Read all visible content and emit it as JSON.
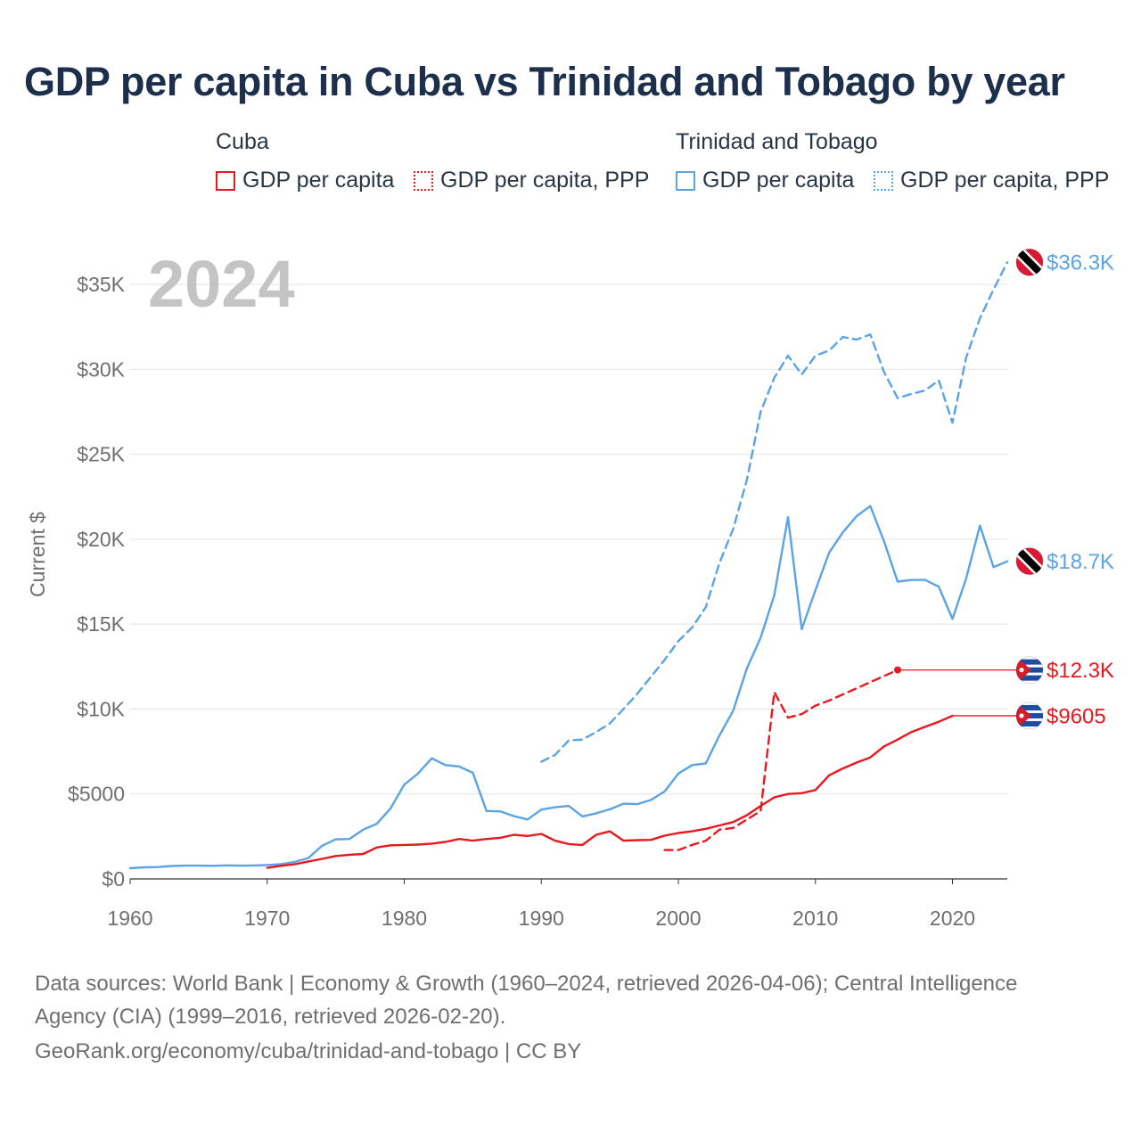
{
  "title": "GDP per capita in Cuba vs Trinidad and Tobago by year",
  "legend": {
    "groups": [
      {
        "title": "Cuba",
        "items": [
          {
            "label": "GDP per capita",
            "color": "#e8181f",
            "style": "solid"
          },
          {
            "label": "GDP per capita, PPP",
            "color": "#e8181f",
            "style": "dotted"
          }
        ]
      },
      {
        "title": "Trinidad and Tobago",
        "items": [
          {
            "label": "GDP per capita",
            "color": "#5ba3e3",
            "style": "solid"
          },
          {
            "label": "GDP per capita, PPP",
            "color": "#5ba3e3",
            "style": "dotted"
          }
        ]
      }
    ]
  },
  "chart_data": {
    "type": "line",
    "title": "GDP per capita in Cuba vs Trinidad and Tobago by year",
    "year_watermark": "2024",
    "xlabel": "",
    "ylabel": "Current $",
    "xlim": [
      1960,
      2024
    ],
    "ylim": [
      0,
      35000
    ],
    "x_ticks": [
      1960,
      1970,
      1980,
      1990,
      2000,
      2010,
      2020
    ],
    "y_ticks": [
      {
        "value": 0,
        "label": "$0"
      },
      {
        "value": 5000,
        "label": "$5000"
      },
      {
        "value": 10000,
        "label": "$10K"
      },
      {
        "value": 15000,
        "label": "$15K"
      },
      {
        "value": 20000,
        "label": "$20K"
      },
      {
        "value": 25000,
        "label": "$25K"
      },
      {
        "value": 30000,
        "label": "$30K"
      },
      {
        "value": 35000,
        "label": "$35K"
      }
    ],
    "grid": true,
    "series": [
      {
        "name": "Trinidad and Tobago GDP per capita, PPP",
        "country": "Trinidad and Tobago",
        "color": "#5ba3e3",
        "dashed": true,
        "end_label": "$36.3K",
        "flag": "tt",
        "x": [
          1990,
          1991,
          1992,
          1993,
          1994,
          1995,
          1996,
          1997,
          1998,
          1999,
          2000,
          2001,
          2002,
          2003,
          2004,
          2005,
          2006,
          2007,
          2008,
          2009,
          2010,
          2011,
          2012,
          2013,
          2014,
          2015,
          2016,
          2017,
          2018,
          2019,
          2020,
          2021,
          2022,
          2023,
          2024
        ],
        "values": [
          6900,
          7300,
          8150,
          8200,
          8650,
          9150,
          10000,
          10900,
          11900,
          12900,
          14000,
          14800,
          16000,
          18600,
          20600,
          23500,
          27500,
          29500,
          30800,
          29700,
          30800,
          31100,
          31900,
          31750,
          32050,
          29850,
          28300,
          28550,
          28750,
          29350,
          26850,
          30700,
          33000,
          34700,
          36300
        ]
      },
      {
        "name": "Trinidad and Tobago GDP per capita",
        "country": "Trinidad and Tobago",
        "color": "#5ba3e3",
        "dashed": false,
        "end_label": "$18.7K",
        "flag": "tt",
        "x": [
          1960,
          1961,
          1962,
          1963,
          1964,
          1965,
          1966,
          1967,
          1968,
          1969,
          1970,
          1971,
          1972,
          1973,
          1974,
          1975,
          1976,
          1977,
          1978,
          1979,
          1980,
          1981,
          1982,
          1983,
          1984,
          1985,
          1986,
          1987,
          1988,
          1989,
          1990,
          1991,
          1992,
          1993,
          1994,
          1995,
          1996,
          1997,
          1998,
          1999,
          2000,
          2001,
          2002,
          2003,
          2004,
          2005,
          2006,
          2007,
          2008,
          2009,
          2010,
          2011,
          2012,
          2013,
          2014,
          2015,
          2016,
          2017,
          2018,
          2019,
          2020,
          2021,
          2022,
          2023,
          2024
        ],
        "values": [
          630,
          680,
          700,
          760,
          780,
          780,
          770,
          800,
          780,
          790,
          820,
          870,
          1000,
          1230,
          1950,
          2330,
          2350,
          2900,
          3250,
          4150,
          5550,
          6200,
          7100,
          6700,
          6620,
          6250,
          4000,
          3980,
          3700,
          3500,
          4080,
          4220,
          4300,
          3680,
          3860,
          4100,
          4430,
          4400,
          4650,
          5150,
          6200,
          6700,
          6800,
          8450,
          9900,
          12400,
          14200,
          16700,
          21300,
          14700,
          17000,
          19200,
          20400,
          21350,
          21950,
          19900,
          17500,
          17600,
          17600,
          17200,
          15300,
          17700,
          20800,
          18350,
          18700
        ]
      },
      {
        "name": "Cuba GDP per capita, PPP",
        "country": "Cuba",
        "color": "#e8181f",
        "dashed": true,
        "end_label": "$12.3K",
        "flag": "cu",
        "x": [
          1999,
          2000,
          2001,
          2002,
          2003,
          2004,
          2005,
          2006,
          2007,
          2008,
          2009,
          2010,
          2011,
          2016
        ],
        "values": [
          1700,
          1700,
          2000,
          2250,
          2900,
          3000,
          3500,
          4000,
          11000,
          9500,
          9700,
          10200,
          10500,
          12300
        ]
      },
      {
        "name": "Cuba GDP per capita",
        "country": "Cuba",
        "color": "#e8181f",
        "dashed": false,
        "end_label": "$9605",
        "flag": "cu",
        "x": [
          1970,
          1971,
          1972,
          1973,
          1974,
          1975,
          1976,
          1977,
          1978,
          1979,
          1980,
          1981,
          1982,
          1983,
          1984,
          1985,
          1986,
          1987,
          1988,
          1989,
          1990,
          1991,
          1992,
          1993,
          1994,
          1995,
          1996,
          1997,
          1998,
          1999,
          2000,
          2001,
          2002,
          2003,
          2004,
          2005,
          2006,
          2007,
          2008,
          2009,
          2010,
          2011,
          2012,
          2013,
          2014,
          2015,
          2016,
          2017,
          2018,
          2019,
          2020
        ],
        "values": [
          650,
          770,
          860,
          1030,
          1180,
          1350,
          1420,
          1470,
          1850,
          1980,
          2000,
          2020,
          2080,
          2180,
          2350,
          2250,
          2350,
          2420,
          2600,
          2530,
          2650,
          2250,
          2050,
          2000,
          2600,
          2800,
          2250,
          2280,
          2300,
          2550,
          2700,
          2800,
          2950,
          3150,
          3350,
          3750,
          4300,
          4800,
          5000,
          5050,
          5230,
          6100,
          6500,
          6850,
          7150,
          7800,
          8200,
          8650,
          8950,
          9250,
          9605
        ]
      }
    ]
  },
  "footer": {
    "line1": "Data sources: World Bank | Economy & Growth (1960–2024, retrieved 2026-04-06); Central Intelligence",
    "line2": "Agency (CIA) (1999–2016, retrieved 2026-02-20).",
    "line3": "GeoRank.org/economy/cuba/trinidad-and-tobago | CC BY"
  }
}
